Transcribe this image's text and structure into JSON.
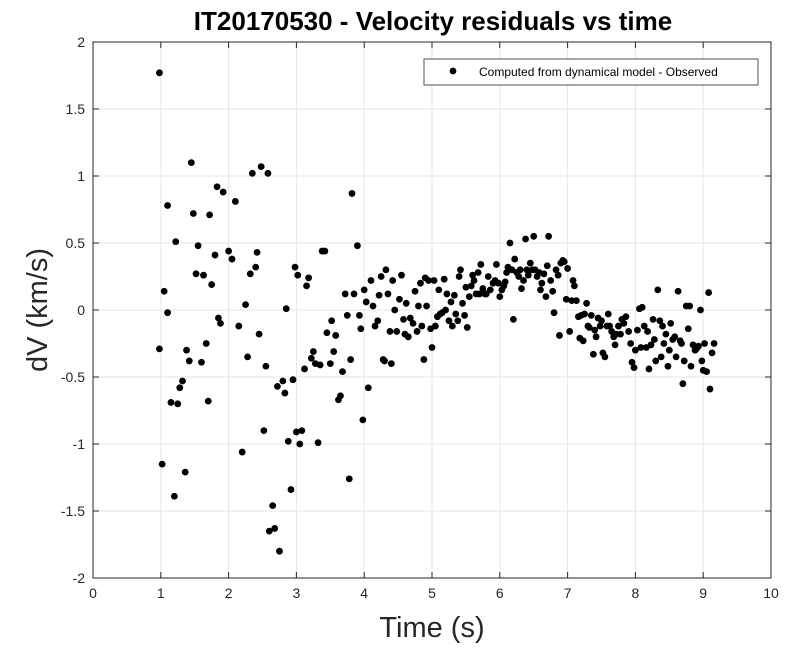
{
  "chart_data": {
    "type": "scatter",
    "title": "IT20170530 - Velocity residuals vs time",
    "xlabel": "Time (s)",
    "ylabel": "dV (km/s)",
    "xlim": [
      0,
      10
    ],
    "ylim": [
      -2,
      2
    ],
    "xticks": [
      "0",
      "1",
      "2",
      "3",
      "4",
      "5",
      "6",
      "7",
      "8",
      "9",
      "10"
    ],
    "yticks": [
      "-2",
      "-1.5",
      "-1",
      "-0.5",
      "0",
      "0.5",
      "1",
      "1.5",
      "2"
    ],
    "grid": true,
    "legend_position": "top-right",
    "colors": {
      "marker": "#000000",
      "axis": "#262626",
      "grid": "#e6e6e6"
    },
    "series": [
      {
        "name": "Computed from dynamical model - Observed",
        "marker": "filled-circle",
        "points": [
          [
            0.98,
            1.77
          ],
          [
            0.98,
            -0.29
          ],
          [
            1.02,
            -1.15
          ],
          [
            1.05,
            0.14
          ],
          [
            1.1,
            0.78
          ],
          [
            1.1,
            -0.02
          ],
          [
            1.15,
            -0.69
          ],
          [
            1.2,
            -1.39
          ],
          [
            1.22,
            0.51
          ],
          [
            1.25,
            -0.7
          ],
          [
            1.28,
            -0.58
          ],
          [
            1.32,
            -0.53
          ],
          [
            1.36,
            -1.21
          ],
          [
            1.38,
            -0.3
          ],
          [
            1.42,
            -0.38
          ],
          [
            1.45,
            1.1
          ],
          [
            1.48,
            0.72
          ],
          [
            1.52,
            0.27
          ],
          [
            1.55,
            0.48
          ],
          [
            1.6,
            -0.39
          ],
          [
            1.63,
            0.26
          ],
          [
            1.67,
            -0.25
          ],
          [
            1.7,
            -0.68
          ],
          [
            1.72,
            0.71
          ],
          [
            1.75,
            0.19
          ],
          [
            1.8,
            0.41
          ],
          [
            1.83,
            0.92
          ],
          [
            1.85,
            -0.06
          ],
          [
            1.88,
            -0.1
          ],
          [
            1.92,
            0.88
          ],
          [
            2.0,
            0.44
          ],
          [
            2.05,
            0.38
          ],
          [
            2.1,
            0.81
          ],
          [
            2.15,
            -0.12
          ],
          [
            2.2,
            -1.06
          ],
          [
            2.25,
            0.04
          ],
          [
            2.28,
            -0.35
          ],
          [
            2.32,
            0.27
          ],
          [
            2.35,
            1.02
          ],
          [
            2.4,
            0.32
          ],
          [
            2.42,
            0.43
          ],
          [
            2.45,
            -0.18
          ],
          [
            2.48,
            1.07
          ],
          [
            2.52,
            -0.9
          ],
          [
            2.55,
            -0.42
          ],
          [
            2.58,
            1.02
          ],
          [
            2.6,
            -1.65
          ],
          [
            2.65,
            -1.46
          ],
          [
            2.68,
            -1.63
          ],
          [
            2.72,
            -0.57
          ],
          [
            2.75,
            -1.8
          ],
          [
            2.8,
            -0.53
          ],
          [
            2.83,
            -0.62
          ],
          [
            2.85,
            0.01
          ],
          [
            2.88,
            -0.98
          ],
          [
            2.92,
            -1.34
          ],
          [
            2.95,
            -0.52
          ],
          [
            2.98,
            0.32
          ],
          [
            3.0,
            -0.91
          ],
          [
            3.02,
            0.26
          ],
          [
            3.05,
            -1.0
          ],
          [
            3.08,
            -0.9
          ],
          [
            3.12,
            -0.44
          ],
          [
            3.15,
            0.18
          ],
          [
            3.18,
            0.24
          ],
          [
            3.22,
            -0.36
          ],
          [
            3.25,
            -0.31
          ],
          [
            3.28,
            -0.4
          ],
          [
            3.32,
            -0.99
          ],
          [
            3.35,
            -0.41
          ],
          [
            3.38,
            0.44
          ],
          [
            3.42,
            0.44
          ],
          [
            3.45,
            -0.17
          ],
          [
            3.5,
            -0.4
          ],
          [
            3.52,
            -0.08
          ],
          [
            3.55,
            -0.31
          ],
          [
            3.58,
            -0.19
          ],
          [
            3.62,
            -0.67
          ],
          [
            3.65,
            -0.64
          ],
          [
            3.68,
            -0.46
          ],
          [
            3.72,
            0.12
          ],
          [
            3.75,
            -0.04
          ],
          [
            3.78,
            -1.26
          ],
          [
            3.8,
            -0.37
          ],
          [
            3.82,
            0.87
          ],
          [
            3.85,
            0.12
          ],
          [
            3.9,
            0.48
          ],
          [
            3.93,
            -0.04
          ],
          [
            3.95,
            -0.14
          ],
          [
            3.98,
            -0.82
          ],
          [
            4.0,
            0.15
          ],
          [
            4.03,
            0.06
          ],
          [
            4.06,
            -0.58
          ],
          [
            4.1,
            0.22
          ],
          [
            4.13,
            0.03
          ],
          [
            4.16,
            -0.12
          ],
          [
            4.2,
            -0.08
          ],
          [
            4.22,
            0.11
          ],
          [
            4.25,
            0.25
          ],
          [
            4.28,
            -0.37
          ],
          [
            4.3,
            -0.38
          ],
          [
            4.32,
            0.3
          ],
          [
            4.35,
            0.12
          ],
          [
            4.38,
            -0.16
          ],
          [
            4.4,
            -0.4
          ],
          [
            4.42,
            0.22
          ],
          [
            4.45,
            0.0
          ],
          [
            4.48,
            -0.16
          ],
          [
            4.52,
            0.08
          ],
          [
            4.55,
            0.26
          ],
          [
            4.58,
            -0.07
          ],
          [
            4.6,
            -0.18
          ],
          [
            4.62,
            0.05
          ],
          [
            4.65,
            -0.2
          ],
          [
            4.68,
            -0.06
          ],
          [
            4.72,
            -0.1
          ],
          [
            4.75,
            0.14
          ],
          [
            4.78,
            -0.16
          ],
          [
            4.8,
            0.03
          ],
          [
            4.83,
            0.2
          ],
          [
            4.85,
            -0.12
          ],
          [
            4.88,
            -0.37
          ],
          [
            4.9,
            0.24
          ],
          [
            4.92,
            0.03
          ],
          [
            4.95,
            0.22
          ],
          [
            4.98,
            -0.14
          ],
          [
            5.0,
            -0.28
          ],
          [
            5.03,
            0.22
          ],
          [
            5.05,
            -0.12
          ],
          [
            5.08,
            -0.05
          ],
          [
            5.1,
            0.15
          ],
          [
            5.12,
            -0.03
          ],
          [
            5.15,
            -0.02
          ],
          [
            5.18,
            0.23
          ],
          [
            5.2,
            -0.0
          ],
          [
            5.22,
            0.12
          ],
          [
            5.25,
            -0.08
          ],
          [
            5.28,
            0.06
          ],
          [
            5.3,
            -0.12
          ],
          [
            5.33,
            0.11
          ],
          [
            5.35,
            -0.03
          ],
          [
            5.38,
            -0.08
          ],
          [
            5.4,
            0.25
          ],
          [
            5.42,
            0.3
          ],
          [
            5.45,
            0.05
          ],
          [
            5.48,
            -0.04
          ],
          [
            5.5,
            0.17
          ],
          [
            5.52,
            -0.13
          ],
          [
            5.55,
            0.1
          ],
          [
            5.58,
            0.18
          ],
          [
            5.6,
            0.26
          ],
          [
            5.62,
            0.22
          ],
          [
            5.65,
            0.12
          ],
          [
            5.68,
            0.28
          ],
          [
            5.7,
            0.12
          ],
          [
            5.72,
            0.34
          ],
          [
            5.75,
            0.16
          ],
          [
            5.78,
            0.12
          ],
          [
            5.8,
            0.12
          ],
          [
            5.83,
            0.25
          ],
          [
            5.86,
            0.15
          ],
          [
            5.9,
            0.2
          ],
          [
            5.93,
            0.22
          ],
          [
            5.95,
            0.34
          ],
          [
            5.98,
            0.2
          ],
          [
            6.0,
            0.1
          ],
          [
            6.03,
            0.15
          ],
          [
            6.06,
            0.18
          ],
          [
            6.08,
            0.21
          ],
          [
            6.1,
            0.28
          ],
          [
            6.12,
            0.32
          ],
          [
            6.15,
            0.5
          ],
          [
            6.18,
            0.3
          ],
          [
            6.2,
            -0.07
          ],
          [
            6.22,
            0.38
          ],
          [
            6.25,
            0.28
          ],
          [
            6.28,
            0.25
          ],
          [
            6.3,
            0.3
          ],
          [
            6.32,
            0.16
          ],
          [
            6.35,
            0.22
          ],
          [
            6.38,
            0.53
          ],
          [
            6.4,
            0.3
          ],
          [
            6.42,
            0.26
          ],
          [
            6.45,
            0.35
          ],
          [
            6.48,
            0.3
          ],
          [
            6.5,
            0.55
          ],
          [
            6.52,
            0.3
          ],
          [
            6.55,
            0.25
          ],
          [
            6.58,
            0.28
          ],
          [
            6.6,
            0.15
          ],
          [
            6.62,
            0.2
          ],
          [
            6.65,
            0.27
          ],
          [
            6.68,
            0.1
          ],
          [
            6.7,
            0.33
          ],
          [
            6.72,
            0.55
          ],
          [
            6.75,
            0.22
          ],
          [
            6.78,
            0.14
          ],
          [
            6.8,
            -0.02
          ],
          [
            6.83,
            0.3
          ],
          [
            6.86,
            0.26
          ],
          [
            6.88,
            -0.19
          ],
          [
            6.9,
            0.35
          ],
          [
            6.93,
            0.37
          ],
          [
            6.95,
            0.36
          ],
          [
            6.98,
            0.08
          ],
          [
            7.0,
            0.31
          ],
          [
            7.03,
            -0.16
          ],
          [
            7.06,
            0.07
          ],
          [
            7.08,
            0.22
          ],
          [
            7.1,
            0.18
          ],
          [
            7.13,
            0.07
          ],
          [
            7.16,
            -0.05
          ],
          [
            7.18,
            -0.21
          ],
          [
            7.2,
            -0.04
          ],
          [
            7.23,
            -0.23
          ],
          [
            7.25,
            -0.03
          ],
          [
            7.28,
            0.05
          ],
          [
            7.3,
            -0.12
          ],
          [
            7.32,
            -0.13
          ],
          [
            7.35,
            -0.04
          ],
          [
            7.38,
            -0.33
          ],
          [
            7.4,
            -0.15
          ],
          [
            7.42,
            -0.2
          ],
          [
            7.45,
            -0.06
          ],
          [
            7.48,
            -0.12
          ],
          [
            7.5,
            -0.08
          ],
          [
            7.52,
            -0.32
          ],
          [
            7.55,
            -0.35
          ],
          [
            7.58,
            -0.12
          ],
          [
            7.6,
            -0.03
          ],
          [
            7.62,
            -0.12
          ],
          [
            7.65,
            -0.16
          ],
          [
            7.68,
            -0.2
          ],
          [
            7.7,
            -0.26
          ],
          [
            7.72,
            -0.18
          ],
          [
            7.75,
            -0.12
          ],
          [
            7.78,
            -0.18
          ],
          [
            7.8,
            -0.07
          ],
          [
            7.83,
            -0.1
          ],
          [
            7.86,
            -0.05
          ],
          [
            7.9,
            -0.16
          ],
          [
            7.93,
            -0.25
          ],
          [
            7.95,
            -0.39
          ],
          [
            7.98,
            -0.43
          ],
          [
            8.0,
            -0.3
          ],
          [
            8.03,
            -0.15
          ],
          [
            8.06,
            0.01
          ],
          [
            8.08,
            -0.28
          ],
          [
            8.1,
            0.02
          ],
          [
            8.13,
            -0.12
          ],
          [
            8.16,
            -0.28
          ],
          [
            8.18,
            -0.16
          ],
          [
            8.2,
            -0.44
          ],
          [
            8.23,
            -0.26
          ],
          [
            8.26,
            -0.07
          ],
          [
            8.28,
            -0.22
          ],
          [
            8.3,
            -0.38
          ],
          [
            8.33,
            0.15
          ],
          [
            8.36,
            -0.08
          ],
          [
            8.38,
            -0.35
          ],
          [
            8.4,
            -0.12
          ],
          [
            8.42,
            -0.25
          ],
          [
            8.45,
            -0.18
          ],
          [
            8.48,
            -0.42
          ],
          [
            8.5,
            -0.3
          ],
          [
            8.52,
            -0.1
          ],
          [
            8.55,
            -0.22
          ],
          [
            8.58,
            -0.2
          ],
          [
            8.6,
            -0.35
          ],
          [
            8.63,
            0.14
          ],
          [
            8.66,
            -0.23
          ],
          [
            8.68,
            -0.25
          ],
          [
            8.7,
            -0.55
          ],
          [
            8.72,
            -0.38
          ],
          [
            8.75,
            0.03
          ],
          [
            8.78,
            -0.14
          ],
          [
            8.8,
            0.03
          ],
          [
            8.82,
            -0.42
          ],
          [
            8.85,
            -0.26
          ],
          [
            8.88,
            -0.3
          ],
          [
            8.9,
            -0.29
          ],
          [
            8.93,
            -0.27
          ],
          [
            8.96,
            0.0
          ],
          [
            8.98,
            -0.38
          ],
          [
            9.0,
            -0.45
          ],
          [
            9.02,
            -0.25
          ],
          [
            9.05,
            -0.46
          ],
          [
            9.08,
            0.13
          ],
          [
            9.1,
            -0.59
          ],
          [
            9.13,
            -0.32
          ],
          [
            9.16,
            -0.25
          ]
        ]
      }
    ]
  }
}
